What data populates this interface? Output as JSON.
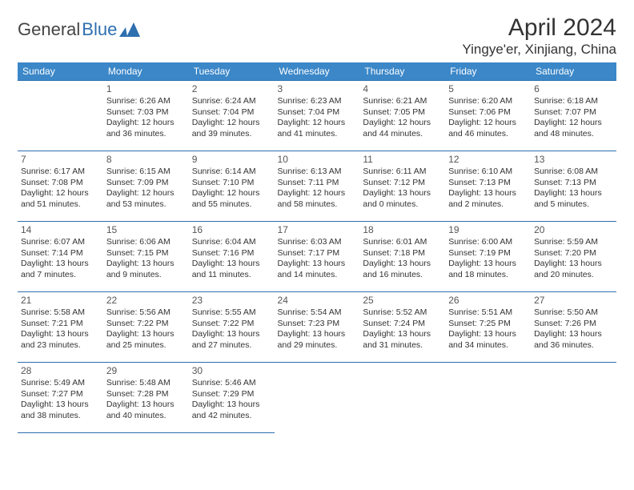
{
  "logo": {
    "text1": "General",
    "text2": "Blue"
  },
  "title": "April 2024",
  "location": "Yingye'er, Xinjiang, China",
  "colors": {
    "header_bg": "#3b87c8",
    "border": "#2e6fb0",
    "text": "#333333"
  },
  "weekdays": [
    "Sunday",
    "Monday",
    "Tuesday",
    "Wednesday",
    "Thursday",
    "Friday",
    "Saturday"
  ],
  "start_offset": 1,
  "days": [
    {
      "n": 1,
      "sr": "6:26 AM",
      "ss": "7:03 PM",
      "dh": 12,
      "dm": 36
    },
    {
      "n": 2,
      "sr": "6:24 AM",
      "ss": "7:04 PM",
      "dh": 12,
      "dm": 39
    },
    {
      "n": 3,
      "sr": "6:23 AM",
      "ss": "7:04 PM",
      "dh": 12,
      "dm": 41
    },
    {
      "n": 4,
      "sr": "6:21 AM",
      "ss": "7:05 PM",
      "dh": 12,
      "dm": 44
    },
    {
      "n": 5,
      "sr": "6:20 AM",
      "ss": "7:06 PM",
      "dh": 12,
      "dm": 46
    },
    {
      "n": 6,
      "sr": "6:18 AM",
      "ss": "7:07 PM",
      "dh": 12,
      "dm": 48
    },
    {
      "n": 7,
      "sr": "6:17 AM",
      "ss": "7:08 PM",
      "dh": 12,
      "dm": 51
    },
    {
      "n": 8,
      "sr": "6:15 AM",
      "ss": "7:09 PM",
      "dh": 12,
      "dm": 53
    },
    {
      "n": 9,
      "sr": "6:14 AM",
      "ss": "7:10 PM",
      "dh": 12,
      "dm": 55
    },
    {
      "n": 10,
      "sr": "6:13 AM",
      "ss": "7:11 PM",
      "dh": 12,
      "dm": 58
    },
    {
      "n": 11,
      "sr": "6:11 AM",
      "ss": "7:12 PM",
      "dh": 13,
      "dm": 0
    },
    {
      "n": 12,
      "sr": "6:10 AM",
      "ss": "7:13 PM",
      "dh": 13,
      "dm": 2
    },
    {
      "n": 13,
      "sr": "6:08 AM",
      "ss": "7:13 PM",
      "dh": 13,
      "dm": 5
    },
    {
      "n": 14,
      "sr": "6:07 AM",
      "ss": "7:14 PM",
      "dh": 13,
      "dm": 7
    },
    {
      "n": 15,
      "sr": "6:06 AM",
      "ss": "7:15 PM",
      "dh": 13,
      "dm": 9
    },
    {
      "n": 16,
      "sr": "6:04 AM",
      "ss": "7:16 PM",
      "dh": 13,
      "dm": 11
    },
    {
      "n": 17,
      "sr": "6:03 AM",
      "ss": "7:17 PM",
      "dh": 13,
      "dm": 14
    },
    {
      "n": 18,
      "sr": "6:01 AM",
      "ss": "7:18 PM",
      "dh": 13,
      "dm": 16
    },
    {
      "n": 19,
      "sr": "6:00 AM",
      "ss": "7:19 PM",
      "dh": 13,
      "dm": 18
    },
    {
      "n": 20,
      "sr": "5:59 AM",
      "ss": "7:20 PM",
      "dh": 13,
      "dm": 20
    },
    {
      "n": 21,
      "sr": "5:58 AM",
      "ss": "7:21 PM",
      "dh": 13,
      "dm": 23
    },
    {
      "n": 22,
      "sr": "5:56 AM",
      "ss": "7:22 PM",
      "dh": 13,
      "dm": 25
    },
    {
      "n": 23,
      "sr": "5:55 AM",
      "ss": "7:22 PM",
      "dh": 13,
      "dm": 27
    },
    {
      "n": 24,
      "sr": "5:54 AM",
      "ss": "7:23 PM",
      "dh": 13,
      "dm": 29
    },
    {
      "n": 25,
      "sr": "5:52 AM",
      "ss": "7:24 PM",
      "dh": 13,
      "dm": 31
    },
    {
      "n": 26,
      "sr": "5:51 AM",
      "ss": "7:25 PM",
      "dh": 13,
      "dm": 34
    },
    {
      "n": 27,
      "sr": "5:50 AM",
      "ss": "7:26 PM",
      "dh": 13,
      "dm": 36
    },
    {
      "n": 28,
      "sr": "5:49 AM",
      "ss": "7:27 PM",
      "dh": 13,
      "dm": 38
    },
    {
      "n": 29,
      "sr": "5:48 AM",
      "ss": "7:28 PM",
      "dh": 13,
      "dm": 40
    },
    {
      "n": 30,
      "sr": "5:46 AM",
      "ss": "7:29 PM",
      "dh": 13,
      "dm": 42
    }
  ],
  "labels": {
    "sunrise": "Sunrise:",
    "sunset": "Sunset:",
    "daylight": "Daylight:",
    "hours": "hours",
    "and": "and",
    "minutes": "minutes."
  }
}
